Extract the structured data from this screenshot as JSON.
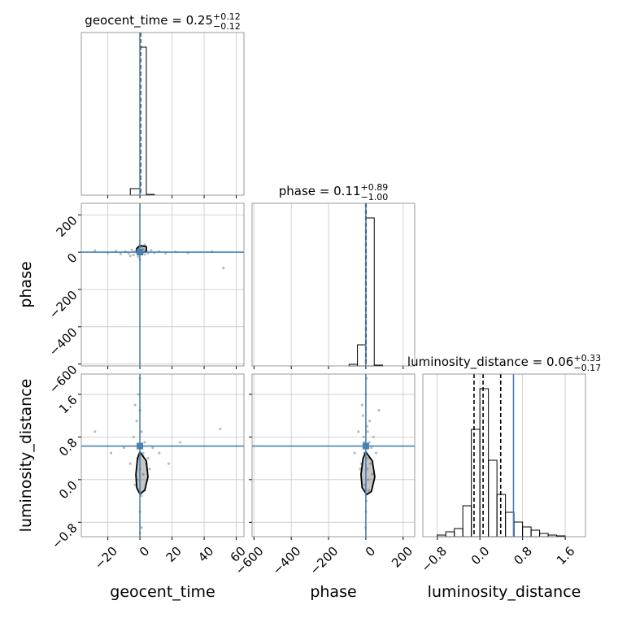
{
  "chart_data": {
    "type": "corner",
    "truth_color": "#4682b4",
    "point_color": "#a0a0a0",
    "line_color": "#000000",
    "grid": true,
    "parameters": [
      {
        "label": "geocent_time",
        "title": "geocent_time = 0.25",
        "title_sup": "+0.12",
        "title_sub": "−0.12",
        "lim": [
          -36.5,
          64.8
        ],
        "ticks": [
          {
            "value": -20,
            "label": "−20"
          },
          0,
          20,
          40,
          60
        ],
        "truth": 0,
        "quantiles": [
          0.13,
          0.25,
          0.37
        ],
        "bins": [
          -6,
          0,
          4,
          9
        ],
        "counts": [
          0.04,
          0.91,
          0.005
        ],
        "hist_ylim": [
          0,
          1
        ]
      },
      {
        "label": "phase",
        "title": "phase = 0.11",
        "title_sup": "+0.89",
        "title_sub": "−1.00",
        "lim": [
          -610,
          262
        ],
        "ticks": [
          {
            "value": -600,
            "label": "−600"
          },
          {
            "value": -400,
            "label": "−400"
          },
          {
            "value": -200,
            "label": "−200"
          },
          0,
          200
        ],
        "truth": 0,
        "quantiles": [
          -0.89,
          0.11,
          1.0
        ],
        "bins": [
          -90,
          -45,
          0,
          45,
          90
        ],
        "counts": [
          0.01,
          0.13,
          0.91,
          0.005
        ],
        "hist_ylim": [
          0,
          1
        ]
      },
      {
        "label": "luminosity_distance",
        "title": "luminosity_distance = 0.06",
        "title_sup": "+0.33",
        "title_sub": "−0.17",
        "lim": [
          -1.07,
          1.98
        ],
        "ticks": [
          {
            "value": -0.8,
            "label": "−0.8"
          },
          {
            "value": 0,
            "label": "0.0"
          },
          0.8,
          1.6
        ],
        "truth": 0.63,
        "quantiles": [
          -0.11,
          0.06,
          0.39
        ],
        "bins": [
          -0.8,
          -0.64,
          -0.48,
          -0.32,
          -0.16,
          0.0,
          0.16,
          0.32,
          0.48,
          0.64,
          0.8,
          0.96,
          1.12,
          1.28,
          1.44,
          1.6
        ],
        "counts": [
          0.01,
          0.03,
          0.05,
          0.19,
          0.66,
          0.91,
          0.47,
          0.26,
          0.15,
          0.09,
          0.06,
          0.04,
          0.02,
          0.01,
          0.005
        ],
        "hist_ylim": [
          0,
          1
        ]
      }
    ],
    "pairs": [
      {
        "xi": 0,
        "yi": 1,
        "x": [
          -28,
          -20,
          -15,
          -12,
          -9,
          -7,
          -5,
          -4,
          -3,
          -2,
          -1,
          -1,
          0,
          0,
          1,
          1,
          2,
          3,
          4,
          5,
          7,
          9,
          12,
          16,
          22,
          30,
          45,
          52,
          -6,
          3
        ],
        "y": [
          8,
          -4,
          6,
          -10,
          3,
          -6,
          12,
          -15,
          5,
          -3,
          20,
          -25,
          8,
          -40,
          30,
          -8,
          15,
          -12,
          6,
          -5,
          10,
          -3,
          4,
          -6,
          2,
          -4,
          3,
          -85,
          -20,
          40
        ],
        "contour_x": [
          0,
          4,
          4,
          1,
          -2,
          -2
        ],
        "contour_y": [
          35,
          30,
          5,
          -5,
          0,
          20
        ]
      },
      {
        "xi": 0,
        "yi": 2,
        "x": [
          -28,
          -18,
          -10,
          -6,
          -4,
          -3,
          -2,
          -1,
          -1,
          0,
          0,
          0,
          1,
          1,
          2,
          2,
          3,
          3,
          4,
          5,
          6,
          8,
          12,
          18,
          25,
          50,
          -3,
          0,
          1,
          -2,
          2,
          0
        ],
        "y": [
          0.9,
          0.5,
          0.6,
          0.3,
          0.8,
          -0.1,
          1.1,
          0.4,
          1.6,
          0.2,
          -0.6,
          1.3,
          0.9,
          -0.3,
          0.5,
          0.1,
          0.7,
          -0.2,
          0.3,
          0.4,
          0.2,
          0.6,
          0.5,
          0.3,
          0.7,
          0.95,
          1.4,
          1.9,
          -0.9,
          0.0,
          0.45,
          -1.0
        ],
        "contour_x": [
          0,
          4,
          5,
          3,
          0,
          -2,
          -2.5,
          -1.5
        ],
        "contour_y": [
          0.52,
          0.35,
          0.05,
          -0.2,
          -0.27,
          -0.15,
          0.1,
          0.4
        ]
      },
      {
        "xi": 1,
        "yi": 2,
        "x": [
          -60,
          -40,
          -25,
          -15,
          -10,
          -5,
          0,
          0,
          5,
          10,
          15,
          20,
          25,
          30,
          40,
          55,
          70,
          -30,
          -8,
          12,
          3,
          -2,
          8,
          -20,
          35,
          18,
          2,
          -12,
          6,
          22
        ],
        "y": [
          0.5,
          0.9,
          0.3,
          1.2,
          0.7,
          -0.1,
          1.6,
          -0.6,
          0.4,
          0.9,
          -0.2,
          1.1,
          0.3,
          0.6,
          0.8,
          0.5,
          1.3,
          0.2,
          0.5,
          0.0,
          1.9,
          -0.9,
          0.2,
          1.4,
          0.1,
          0.7,
          -0.4,
          0.8,
          1.0,
          0.4
        ],
        "contour_x": [
          0,
          35,
          48,
          30,
          5,
          -20,
          -26,
          -15
        ],
        "contour_y": [
          0.52,
          0.35,
          0.05,
          -0.22,
          -0.28,
          -0.15,
          0.1,
          0.4
        ]
      }
    ]
  }
}
